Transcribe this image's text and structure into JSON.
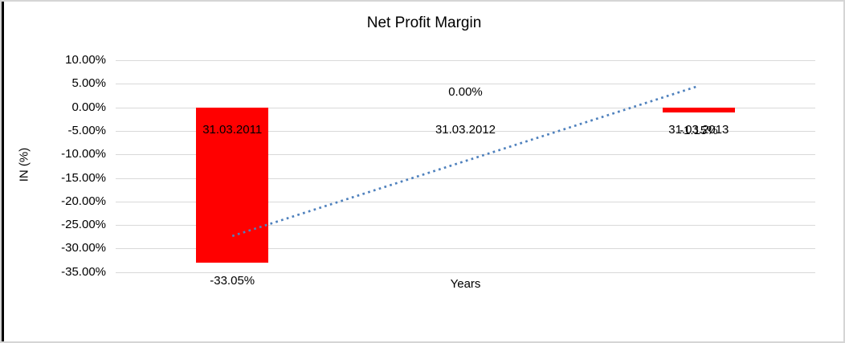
{
  "chart_data": {
    "type": "bar",
    "title": "Net Profit Margin",
    "xlabel": "Years",
    "ylabel": "IN (%)",
    "categories": [
      "31.03.2011",
      "31.03.2012",
      "31.03.2013"
    ],
    "values": [
      -33.05,
      0.0,
      -1.15
    ],
    "data_labels": [
      "-33.05%",
      "0.00%",
      "-1.15%"
    ],
    "y_tick_values": [
      10,
      5,
      0,
      -5,
      -10,
      -15,
      -20,
      -25,
      -30,
      -35
    ],
    "y_tick_labels": [
      "10.00%",
      "5.00%",
      "0.00%",
      "-5.00%",
      "-10.00%",
      "-15.00%",
      "-20.00%",
      "-25.00%",
      "-30.00%",
      "-35.00%"
    ],
    "ylim": [
      -35,
      10
    ],
    "grid": true,
    "legend": "none",
    "bar_color": "#ff0000",
    "gridline_color": "#d9d9d9",
    "trendline": {
      "type": "linear",
      "style": "dotted",
      "color": "#4f81bd",
      "points": [
        {
          "category_index": 0,
          "value": -27.35
        },
        {
          "category_index": 2,
          "value": 4.55
        }
      ]
    }
  },
  "frame": {
    "border_color": "#d5d5d5",
    "left_strip_color": "#000000",
    "background": "#ffffff"
  }
}
